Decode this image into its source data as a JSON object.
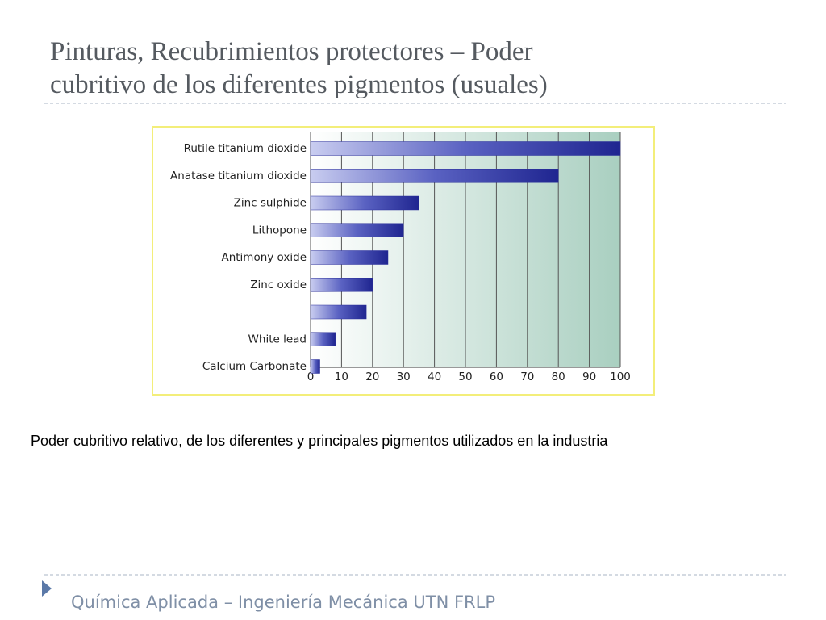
{
  "title": [
    "Pinturas, Recubrimientos protectores – Poder",
    "cubritivo de los diferentes pigmentos (usuales)"
  ],
  "caption": "Poder cubritivo relativo, de los diferentes y principales pigmentos utilizados en la industria",
  "footer": "Química Aplicada – Ingeniería Mecánica UTN FRLP",
  "chart_data": {
    "type": "barh",
    "categories": [
      "Rutile titanium dioxide",
      "Anatase titanium dioxide",
      "Zinc sulphide",
      "Lithopone",
      "Antimony oxide",
      "Zinc oxide",
      null,
      "White lead",
      "Calcium Carbonate"
    ],
    "values": [
      100,
      80,
      35,
      30,
      25,
      20,
      18,
      8,
      3
    ],
    "color": "#2a2f9a",
    "xlim": [
      0,
      100
    ],
    "xticks": [
      0,
      10,
      20,
      30,
      40,
      50,
      60,
      70,
      80,
      90,
      100
    ],
    "grid": true
  }
}
